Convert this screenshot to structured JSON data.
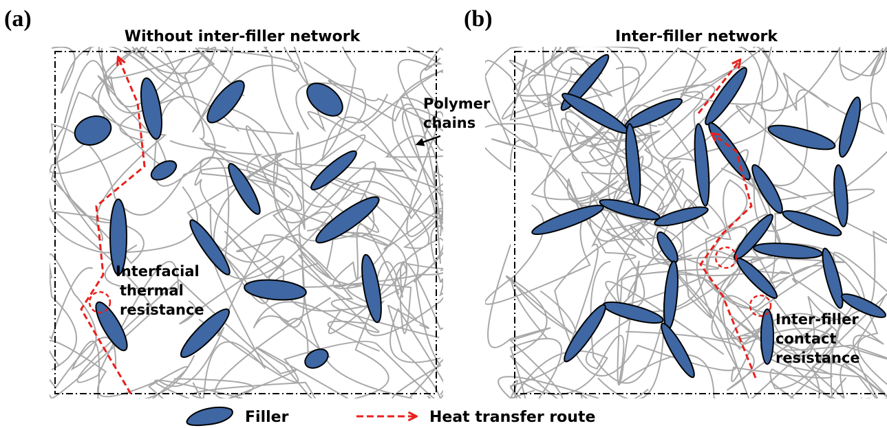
{
  "panels": [
    {
      "label": "(a)",
      "title": "Without inter-filler network",
      "annotations": [
        {
          "lines": [
            "Polymer",
            "chains"
          ]
        },
        {
          "lines": [
            "Interfacial",
            "thermal",
            "resistance"
          ]
        }
      ]
    },
    {
      "label": "(b)",
      "title": "Inter-filler network",
      "annotations": [
        {
          "lines": [
            "Inter-filler",
            "contact",
            "resistance"
          ]
        }
      ]
    }
  ],
  "legend": {
    "filler": "Filler",
    "route": "Heat transfer route"
  }
}
